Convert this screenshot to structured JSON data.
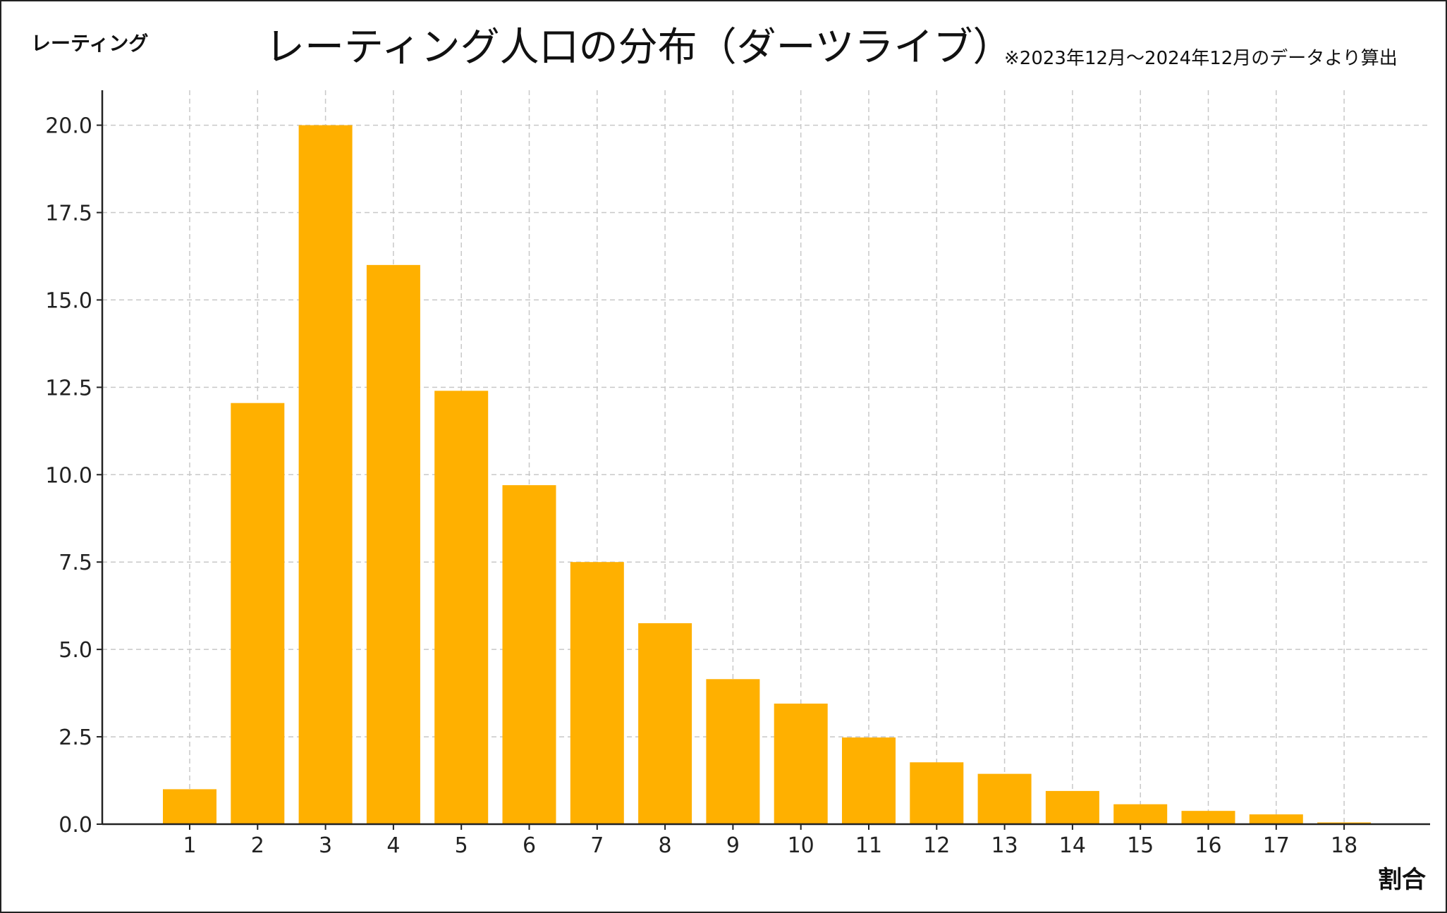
{
  "chart_data": {
    "type": "bar",
    "title": "レーティング人口の分布（ダーツライブ）",
    "note": "※2023年12月〜2024年12月のデータより算出",
    "ylabel": "レーティング",
    "xlabel": "割合",
    "categories": [
      "1",
      "2",
      "3",
      "4",
      "5",
      "6",
      "7",
      "8",
      "9",
      "10",
      "11",
      "12",
      "13",
      "14",
      "15",
      "16",
      "17",
      "18"
    ],
    "values": [
      1.0,
      12.05,
      20.0,
      16.0,
      12.4,
      9.7,
      7.5,
      5.75,
      4.15,
      3.45,
      2.48,
      1.77,
      1.44,
      0.95,
      0.57,
      0.38,
      0.28,
      0.05
    ],
    "ylim": [
      0,
      21
    ],
    "yticks": [
      "0.0",
      "2.5",
      "5.0",
      "7.5",
      "10.0",
      "12.5",
      "15.0",
      "17.5",
      "20.0"
    ],
    "ytick_values": [
      0,
      2.5,
      5,
      7.5,
      10,
      12.5,
      15,
      17.5,
      20
    ],
    "bar_color": "#ffb000",
    "grid": true
  }
}
